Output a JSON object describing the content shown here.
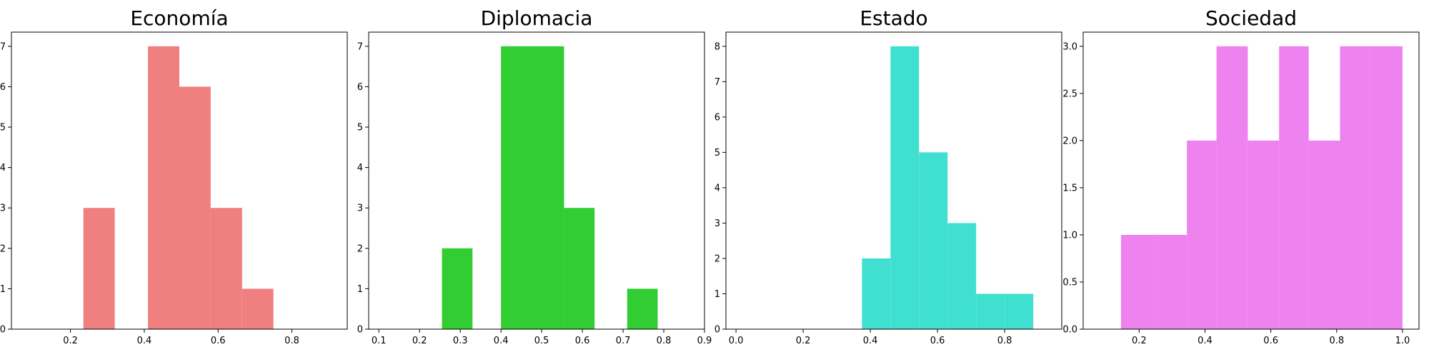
{
  "chart_data": [
    {
      "type": "histogram",
      "title": "Economía",
      "color": "#F08080",
      "xlim": [
        0.04,
        0.95
      ],
      "ylim": [
        0,
        7.35
      ],
      "xticks": [
        0.2,
        0.4,
        0.6,
        0.8
      ],
      "xtick_labels": [
        "0.2",
        "0.4",
        "0.6",
        "0.8"
      ],
      "yticks": [
        0,
        1,
        2,
        3,
        4,
        5,
        6,
        7
      ],
      "ytick_labels": [
        "0",
        "1",
        "2",
        "3",
        "4",
        "5",
        "6",
        "7"
      ],
      "bins": [
        {
          "x0": 0.235,
          "x1": 0.32,
          "count": 3
        },
        {
          "x0": 0.41,
          "x1": 0.495,
          "count": 7
        },
        {
          "x0": 0.495,
          "x1": 0.58,
          "count": 6
        },
        {
          "x0": 0.58,
          "x1": 0.665,
          "count": 3
        },
        {
          "x0": 0.665,
          "x1": 0.75,
          "count": 1
        }
      ]
    },
    {
      "type": "histogram",
      "title": "Diplomacia",
      "color": "#32CD32",
      "xlim": [
        0.075,
        0.9
      ],
      "ylim": [
        0,
        7.35
      ],
      "xticks": [
        0.1,
        0.2,
        0.3,
        0.4,
        0.5,
        0.6,
        0.7,
        0.8,
        0.9
      ],
      "xtick_labels": [
        "0.1",
        "0.2",
        "0.3",
        "0.4",
        "0.5",
        "0.6",
        "0.7",
        "0.8",
        "0.9"
      ],
      "yticks": [
        0,
        1,
        2,
        3,
        4,
        5,
        6,
        7
      ],
      "ytick_labels": [
        "0",
        "1",
        "2",
        "3",
        "4",
        "5",
        "6",
        "7"
      ],
      "bins": [
        {
          "x0": 0.255,
          "x1": 0.33,
          "count": 2
        },
        {
          "x0": 0.4,
          "x1": 0.555,
          "count": 7
        },
        {
          "x0": 0.555,
          "x1": 0.63,
          "count": 3
        },
        {
          "x0": 0.71,
          "x1": 0.785,
          "count": 1
        }
      ]
    },
    {
      "type": "histogram",
      "title": "Estado",
      "color": "#40E0D0",
      "xlim": [
        -0.03,
        0.97
      ],
      "ylim": [
        0,
        8.4
      ],
      "xticks": [
        0.0,
        0.2,
        0.4,
        0.6,
        0.8
      ],
      "xtick_labels": [
        "0.0",
        "0.2",
        "0.4",
        "0.6",
        "0.8"
      ],
      "yticks": [
        0,
        1,
        2,
        3,
        4,
        5,
        6,
        7,
        8
      ],
      "ytick_labels": [
        "0",
        "1",
        "2",
        "3",
        "4",
        "5",
        "6",
        "7",
        "8"
      ],
      "bins": [
        {
          "x0": 0.375,
          "x1": 0.46,
          "count": 2
        },
        {
          "x0": 0.46,
          "x1": 0.545,
          "count": 8
        },
        {
          "x0": 0.545,
          "x1": 0.63,
          "count": 5
        },
        {
          "x0": 0.63,
          "x1": 0.715,
          "count": 3
        },
        {
          "x0": 0.715,
          "x1": 0.8,
          "count": 1
        },
        {
          "x0": 0.8,
          "x1": 0.885,
          "count": 1
        }
      ]
    },
    {
      "type": "histogram",
      "title": "Sociedad",
      "color": "#EE82EE",
      "xlim": [
        0.03,
        1.05
      ],
      "ylim": [
        0,
        3.15
      ],
      "xticks": [
        0.2,
        0.4,
        0.6,
        0.8,
        1.0
      ],
      "xtick_labels": [
        "0.2",
        "0.4",
        "0.6",
        "0.8",
        "1.0"
      ],
      "yticks": [
        0,
        0.5,
        1.0,
        1.5,
        2.0,
        2.5,
        3.0
      ],
      "ytick_labels": [
        "0.0",
        "0.5",
        "1.0",
        "1.5",
        "2.0",
        "2.5",
        "3.0"
      ],
      "bins": [
        {
          "x0": 0.145,
          "x1": 0.245,
          "count": 1
        },
        {
          "x0": 0.245,
          "x1": 0.345,
          "count": 1
        },
        {
          "x0": 0.345,
          "x1": 0.435,
          "count": 2
        },
        {
          "x0": 0.435,
          "x1": 0.53,
          "count": 3
        },
        {
          "x0": 0.53,
          "x1": 0.625,
          "count": 2
        },
        {
          "x0": 0.625,
          "x1": 0.715,
          "count": 3
        },
        {
          "x0": 0.715,
          "x1": 0.81,
          "count": 2
        },
        {
          "x0": 0.81,
          "x1": 0.9,
          "count": 3
        },
        {
          "x0": 0.9,
          "x1": 1.0,
          "count": 3
        }
      ]
    }
  ]
}
